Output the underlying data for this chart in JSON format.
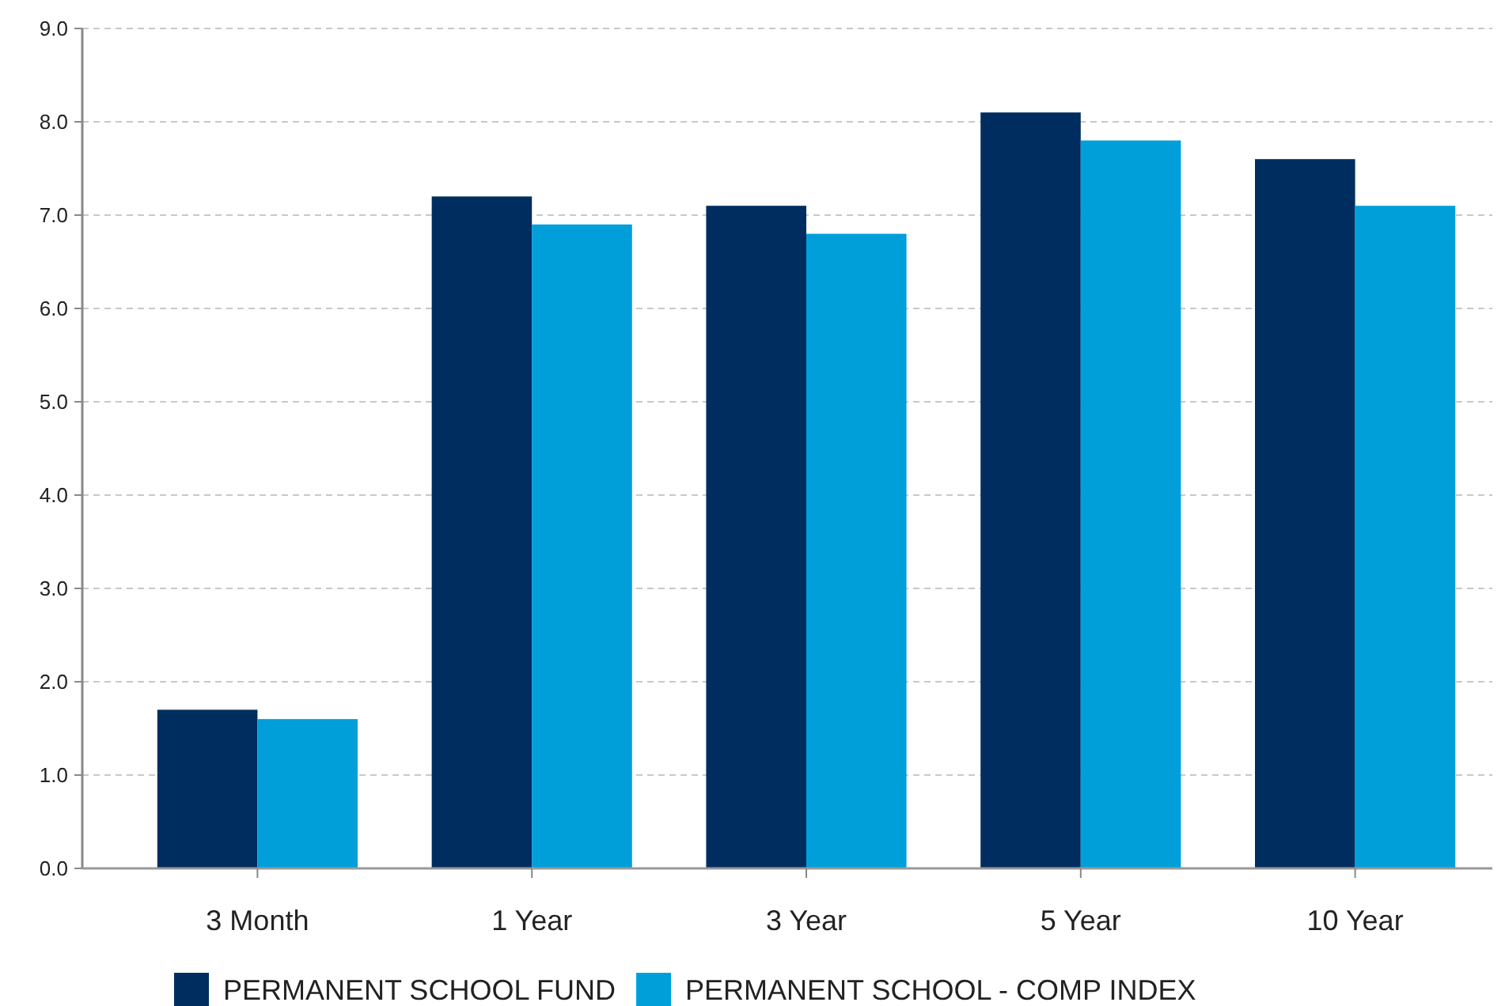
{
  "chart_data": {
    "type": "bar",
    "categories": [
      "3 Month",
      "1 Year",
      "3 Year",
      "5 Year",
      "10 Year"
    ],
    "series": [
      {
        "name": "PERMANENT SCHOOL FUND",
        "color": "#002d5f",
        "values": [
          1.7,
          7.2,
          7.1,
          8.1,
          7.6
        ]
      },
      {
        "name": "PERMANENT SCHOOL - COMP INDEX",
        "color": "#009fda",
        "values": [
          1.6,
          6.9,
          6.8,
          7.8,
          7.1
        ]
      }
    ],
    "ylim": [
      0,
      9
    ],
    "yticks": [
      {
        "value": 0,
        "label": "0.0"
      },
      {
        "value": 1,
        "label": "1.0"
      },
      {
        "value": 2,
        "label": "2.0"
      },
      {
        "value": 3,
        "label": "3.0"
      },
      {
        "value": 4,
        "label": "4.0"
      },
      {
        "value": 5,
        "label": "5.0"
      },
      {
        "value": 6,
        "label": "6.0"
      },
      {
        "value": 7,
        "label": "7.0"
      },
      {
        "value": 8,
        "label": "8.0"
      },
      {
        "value": 9,
        "label": "9.0"
      }
    ],
    "grid": "y",
    "legend": "bottom"
  }
}
